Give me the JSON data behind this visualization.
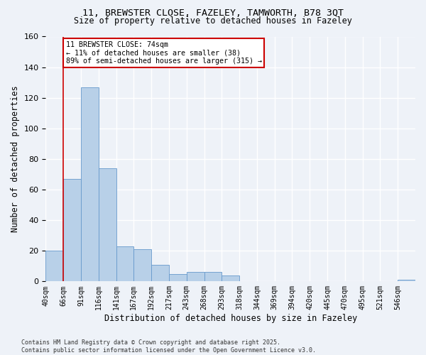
{
  "title_line1": "11, BREWSTER CLOSE, FAZELEY, TAMWORTH, B78 3QT",
  "title_line2": "Size of property relative to detached houses in Fazeley",
  "xlabel": "Distribution of detached houses by size in Fazeley",
  "ylabel": "Number of detached properties",
  "bins": [
    "40sqm",
    "66sqm",
    "91sqm",
    "116sqm",
    "141sqm",
    "167sqm",
    "192sqm",
    "217sqm",
    "243sqm",
    "268sqm",
    "293sqm",
    "318sqm",
    "344sqm",
    "369sqm",
    "394sqm",
    "420sqm",
    "445sqm",
    "470sqm",
    "495sqm",
    "521sqm",
    "546sqm"
  ],
  "values": [
    20,
    67,
    127,
    74,
    23,
    21,
    11,
    5,
    6,
    6,
    4,
    0,
    0,
    0,
    0,
    0,
    0,
    0,
    0,
    0,
    1
  ],
  "bar_color": "#b8d0e8",
  "bar_edge_color": "#6699cc",
  "background_color": "#eef2f8",
  "grid_color": "#ffffff",
  "property_bin_index": 1,
  "annotation_text": "11 BREWSTER CLOSE: 74sqm\n← 11% of detached houses are smaller (38)\n89% of semi-detached houses are larger (315) →",
  "annotation_box_color": "#ffffff",
  "annotation_border_color": "#cc0000",
  "red_line_color": "#cc0000",
  "ylim": [
    0,
    160
  ],
  "yticks": [
    0,
    20,
    40,
    60,
    80,
    100,
    120,
    140,
    160
  ],
  "footer_line1": "Contains HM Land Registry data © Crown copyright and database right 2025.",
  "footer_line2": "Contains public sector information licensed under the Open Government Licence v3.0."
}
